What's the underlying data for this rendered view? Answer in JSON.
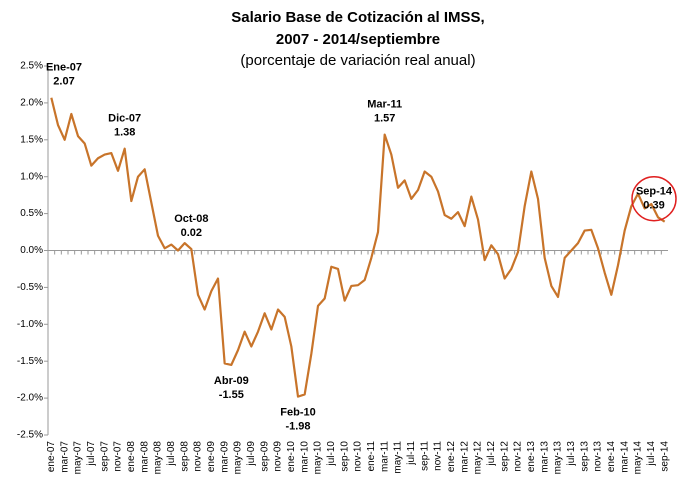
{
  "chart_data": {
    "type": "line",
    "title": [
      "Salario Base de Cotización al IMSS,",
      "2007 - 2014/septiembre"
    ],
    "subtitle": "(porcentaje de variación real anual)",
    "categories": [
      "ene-07",
      null,
      "mar-07",
      null,
      "may-07",
      null,
      "jul-07",
      null,
      "sep-07",
      null,
      "nov-07",
      null,
      "ene-08",
      null,
      "mar-08",
      null,
      "may-08",
      null,
      "jul-08",
      null,
      "sep-08",
      null,
      "nov-08",
      null,
      "ene-09",
      null,
      "mar-09",
      null,
      "may-09",
      null,
      "jul-09",
      null,
      "sep-09",
      null,
      "nov-09",
      null,
      "ene-10",
      null,
      "mar-10",
      null,
      "may-10",
      null,
      "jul-10",
      null,
      "sep-10",
      null,
      "nov-10",
      null,
      "ene-11",
      null,
      "mar-11",
      null,
      "may-11",
      null,
      "jul-11",
      null,
      "sep-11",
      null,
      "nov-11",
      null,
      "ene-12",
      null,
      "mar-12",
      null,
      "may-12",
      null,
      "jul-12",
      null,
      "sep-12",
      null,
      "nov-12",
      null,
      "ene-13",
      null,
      "mar-13",
      null,
      "may-13",
      null,
      "jul-13",
      null,
      "sep-13",
      null,
      "nov-13",
      null,
      "ene-14",
      null,
      "mar-14",
      null,
      "may-14",
      null,
      "jul-14",
      null,
      "sep-14"
    ],
    "series": [
      {
        "name": "Salario Base de Cotización",
        "color": "#c8742a",
        "values": [
          2.07,
          1.7,
          1.5,
          1.85,
          1.55,
          1.45,
          1.15,
          1.25,
          1.3,
          1.32,
          1.08,
          1.38,
          0.67,
          1.0,
          1.1,
          0.65,
          0.2,
          0.03,
          0.08,
          0.0,
          0.1,
          0.02,
          -0.6,
          -0.8,
          -0.55,
          -0.38,
          -1.53,
          -1.55,
          -1.35,
          -1.1,
          -1.3,
          -1.1,
          -0.85,
          -1.07,
          -0.8,
          -0.9,
          -1.3,
          -1.98,
          -1.95,
          -1.4,
          -0.75,
          -0.65,
          -0.22,
          -0.25,
          -0.68,
          -0.48,
          -0.47,
          -0.4,
          -0.1,
          0.25,
          1.57,
          1.3,
          0.85,
          0.95,
          0.7,
          0.82,
          1.07,
          1.0,
          0.8,
          0.48,
          0.43,
          0.52,
          0.33,
          0.73,
          0.42,
          -0.13,
          0.07,
          -0.05,
          -0.38,
          -0.25,
          -0.02,
          0.6,
          1.07,
          0.7,
          -0.1,
          -0.48,
          -0.63,
          -0.1,
          0.0,
          0.1,
          0.27,
          0.28,
          0.03,
          -0.3,
          -0.6,
          -0.2,
          0.27,
          0.6,
          0.77,
          0.57,
          0.63,
          0.45,
          0.39
        ]
      }
    ],
    "ylim": [
      -2.5,
      2.5
    ],
    "yticks": [
      {
        "value": -2.5,
        "label": "-2.5%"
      },
      {
        "value": -2.0,
        "label": "-2.0%"
      },
      {
        "value": -1.5,
        "label": "-1.5%"
      },
      {
        "value": -1.0,
        "label": "-1.0%"
      },
      {
        "value": -0.5,
        "label": "-0.5%"
      },
      {
        "value": 0,
        "label": "0.0%"
      },
      {
        "value": 0.5,
        "label": "0.5%"
      },
      {
        "value": 1.0,
        "label": "1.0%"
      },
      {
        "value": 1.5,
        "label": "1.5%"
      },
      {
        "value": 2.0,
        "label": "2.0%"
      },
      {
        "value": 2.5,
        "label": "2.5%"
      }
    ],
    "annotations": [
      {
        "label": "Ene-07",
        "value": 2.07
      },
      {
        "label": "Dic-07",
        "value": 1.38
      },
      {
        "label": "Oct-08",
        "value": 0.02
      },
      {
        "label": "Abr-09",
        "value": -1.55
      },
      {
        "label": "Feb-10",
        "value": -1.98
      },
      {
        "label": "Mar-11",
        "value": 1.57
      },
      {
        "label": "Sep-14",
        "value": 0.39,
        "highlight": true
      }
    ]
  }
}
